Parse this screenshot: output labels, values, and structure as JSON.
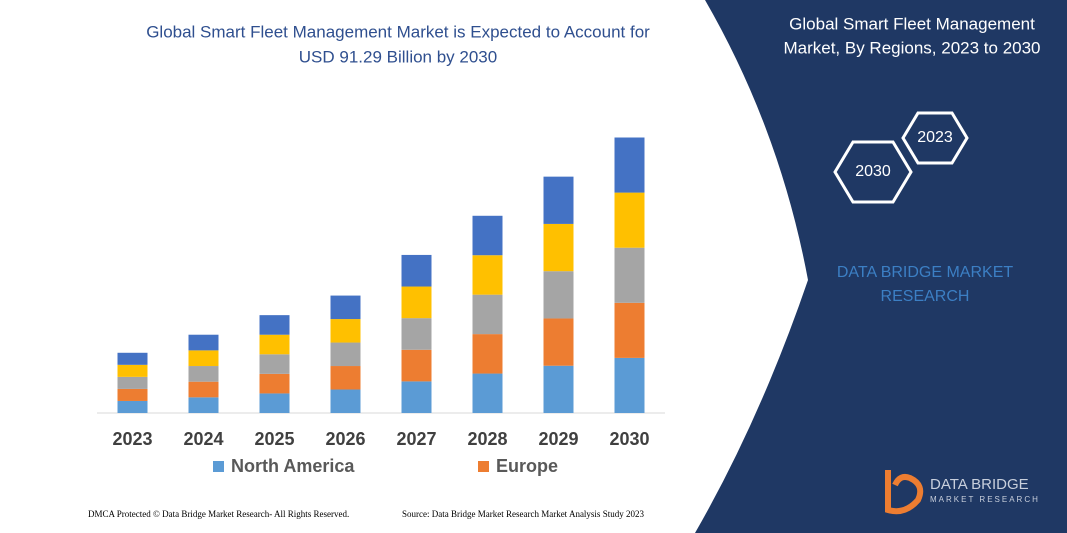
{
  "chart_data": {
    "type": "stacked_bar",
    "title": [
      "Global Smart Fleet Management Market is Expected to Account for",
      "USD 91.29 Billion by 2030"
    ],
    "categories": [
      "2023",
      "2024",
      "2025",
      "2026",
      "2027",
      "2028",
      "2029",
      "2030"
    ],
    "series": [
      {
        "name": "North America",
        "color": "#5b9bd5",
        "values": [
          4.0,
          5.2,
          6.5,
          7.8,
          10.5,
          13.1,
          15.7,
          18.3
        ]
      },
      {
        "name": "Europe",
        "color": "#ed7d31",
        "values": [
          4.0,
          5.2,
          6.5,
          7.8,
          10.5,
          13.1,
          15.7,
          18.3
        ]
      },
      {
        "color": "#a5a5a5",
        "values": [
          4.0,
          5.2,
          6.5,
          7.8,
          10.5,
          13.1,
          15.7,
          18.3
        ]
      },
      {
        "color": "#ffc000",
        "values": [
          4.0,
          5.2,
          6.5,
          7.8,
          10.5,
          13.1,
          15.7,
          18.3
        ]
      },
      {
        "color": "#4472c4",
        "values": [
          4.0,
          5.2,
          6.5,
          7.8,
          10.5,
          13.1,
          15.7,
          18.3
        ]
      }
    ],
    "ylim": [
      0,
      92
    ]
  },
  "panel": {
    "title": [
      "Global Smart Fleet Management",
      "Market, By Regions, 2023 to 2030"
    ],
    "hex_labels": [
      "2023",
      "2030"
    ],
    "brand": [
      "DATA BRIDGE MARKET",
      "RESEARCH"
    ],
    "logo": [
      "DATA BRIDGE",
      "MARKET RESEARCH"
    ]
  },
  "footer": {
    "left": "DMCA Protected © Data Bridge Market Research-  All Rights Reserved.",
    "right": "Source: Data Bridge Market Research  Market Analysis Study 2023"
  }
}
